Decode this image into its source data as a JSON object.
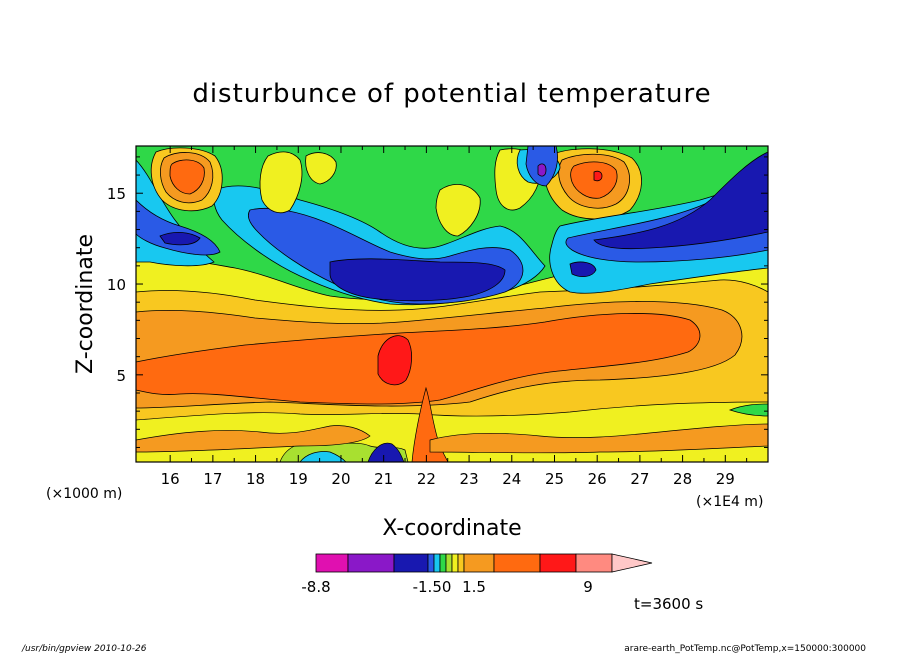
{
  "chart_data": {
    "type": "heatmap",
    "title": "disturbunce of potential temperature",
    "xlabel": "X-coordinate",
    "ylabel": "Z-coordinate",
    "x_unit_left": "(×1000 m)",
    "x_unit_right": "(×1E4 m)",
    "xlim": [
      15.2,
      30.0
    ],
    "ylim": [
      0.2,
      17.6
    ],
    "x_ticks": [
      "16",
      "17",
      "18",
      "19",
      "20",
      "21",
      "22",
      "23",
      "24",
      "25",
      "26",
      "27",
      "28",
      "29"
    ],
    "y_ticks": [
      "5",
      "10",
      "15"
    ],
    "y_tick_values": [
      5,
      10,
      15
    ],
    "colorbar": {
      "labels": [
        "-8.8",
        "-1.50",
        "1.5",
        "9"
      ],
      "colors": [
        "#e010b0",
        "#8a18c8",
        "#1818b0",
        "#2a5ae6",
        "#18c8f0",
        "#2fd848",
        "#a8e030",
        "#f0f020",
        "#f8c820",
        "#f59a20",
        "#ff6a10",
        "#ff1818",
        "#ff8a80",
        "#ffc8c8"
      ]
    },
    "annotation": "t=3600 s",
    "field_levels": [
      {
        "name": "strong-negative",
        "color": "#1818b0"
      },
      {
        "name": "negative",
        "color": "#2a5ae6"
      },
      {
        "name": "weak-negative",
        "color": "#18c8f0"
      },
      {
        "name": "near-zero",
        "color": "#2fd848"
      },
      {
        "name": "weak-positive",
        "color": "#f0f020"
      },
      {
        "name": "positive",
        "color": "#f8c820"
      },
      {
        "name": "moderate-positive",
        "color": "#f59a20"
      },
      {
        "name": "strong-positive",
        "color": "#ff6a10"
      },
      {
        "name": "max-positive",
        "color": "#ff1818"
      },
      {
        "name": "min-negative",
        "color": "#8a18c8"
      }
    ]
  },
  "footer": {
    "left": "/usr/bin/gpview   2010-10-26",
    "right": "arare-earth_PotTemp.nc@PotTemp,x=150000:300000"
  }
}
